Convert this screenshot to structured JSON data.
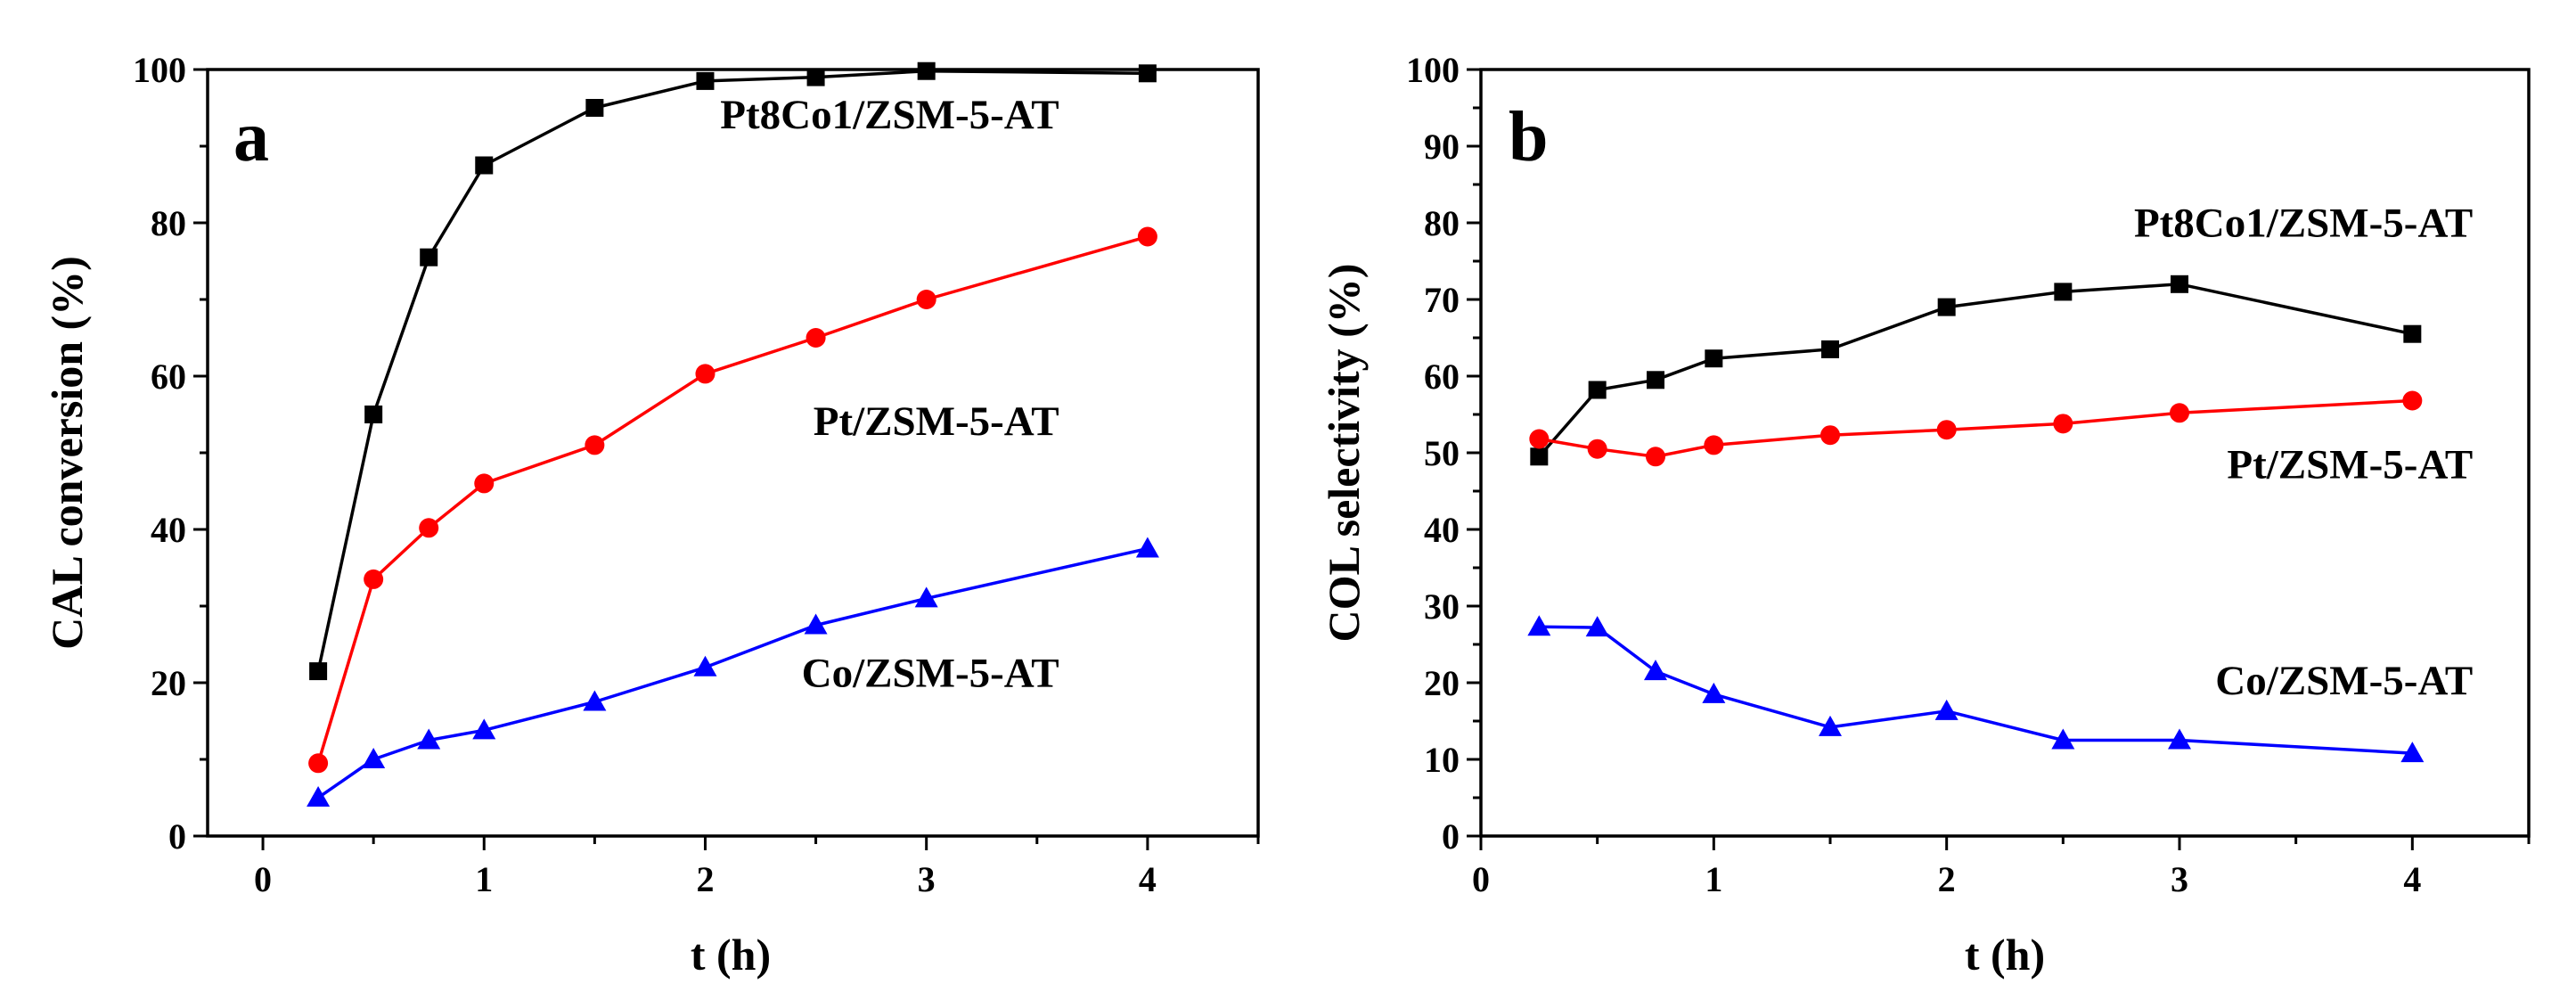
{
  "chart_data": [
    {
      "panel_label": "a",
      "type": "line",
      "title": "",
      "xlabel": "t (h)",
      "ylabel": "CAL conversion (%)",
      "xlim": [
        -0.25,
        4.5
      ],
      "ylim": [
        0,
        100
      ],
      "xticks": [
        0,
        1,
        2,
        3,
        4
      ],
      "yticks": [
        0,
        20,
        40,
        60,
        80,
        100
      ],
      "series": [
        {
          "name": "Pt8Co1/ZSM-5-AT",
          "color": "#000000",
          "marker": "square",
          "x": [
            0.25,
            0.5,
            0.75,
            1,
            1.5,
            2,
            2.5,
            3,
            4
          ],
          "y": [
            21.5,
            55,
            75.5,
            87.5,
            95,
            98.5,
            99,
            99.8,
            99.5
          ],
          "label_at": [
            3.6,
            92.3
          ]
        },
        {
          "name": "Pt/ZSM-5-AT",
          "color": "#ff0000",
          "marker": "circle",
          "x": [
            0.25,
            0.5,
            0.75,
            1,
            1.5,
            2,
            2.5,
            3,
            4
          ],
          "y": [
            9.5,
            33.5,
            40.2,
            46,
            51,
            60.3,
            65,
            70,
            78.2
          ],
          "label_at": [
            3.6,
            52.3
          ]
        },
        {
          "name": "Co/ZSM-5-AT",
          "color": "#0000ff",
          "marker": "triangle",
          "x": [
            0.25,
            0.5,
            0.75,
            1,
            1.5,
            2,
            2.5,
            3,
            4
          ],
          "y": [
            5,
            10,
            12.5,
            13.8,
            17.5,
            22,
            27.5,
            31,
            37.5
          ],
          "label_at": [
            3.6,
            19.5
          ]
        }
      ]
    },
    {
      "panel_label": "b",
      "type": "line",
      "title": "",
      "xlabel": "t (h)",
      "ylabel": "COL selectivity (%)",
      "xlim": [
        0,
        4.5
      ],
      "ylim": [
        0,
        100
      ],
      "xticks": [
        0,
        1,
        2,
        3,
        4
      ],
      "yticks": [
        0,
        10,
        20,
        30,
        40,
        50,
        60,
        70,
        80,
        90,
        100
      ],
      "series": [
        {
          "name": "Pt8Co1/ZSM-5-AT",
          "color": "#000000",
          "marker": "square",
          "x": [
            0.25,
            0.5,
            0.75,
            1,
            1.5,
            2,
            2.5,
            3,
            4
          ],
          "y": [
            49.5,
            58.2,
            59.5,
            62.3,
            63.5,
            69,
            71,
            72,
            65.5
          ],
          "label_at": [
            4.26,
            78.2
          ]
        },
        {
          "name": "Pt/ZSM-5-AT",
          "color": "#ff0000",
          "marker": "circle",
          "x": [
            0.25,
            0.5,
            0.75,
            1,
            1.5,
            2,
            2.5,
            3,
            4
          ],
          "y": [
            51.8,
            50.5,
            49.5,
            51,
            52.3,
            53,
            53.8,
            55.2,
            56.8
          ],
          "label_at": [
            4.26,
            46.7
          ]
        },
        {
          "name": "Co/ZSM-5-AT",
          "color": "#0000ff",
          "marker": "triangle",
          "x": [
            0.25,
            0.5,
            0.75,
            1,
            1.5,
            2,
            2.5,
            3,
            4
          ],
          "y": [
            27.3,
            27.2,
            21.5,
            18.5,
            14.2,
            16.3,
            12.5,
            12.5,
            10.8
          ],
          "label_at": [
            4.26,
            18.5
          ]
        }
      ]
    }
  ]
}
